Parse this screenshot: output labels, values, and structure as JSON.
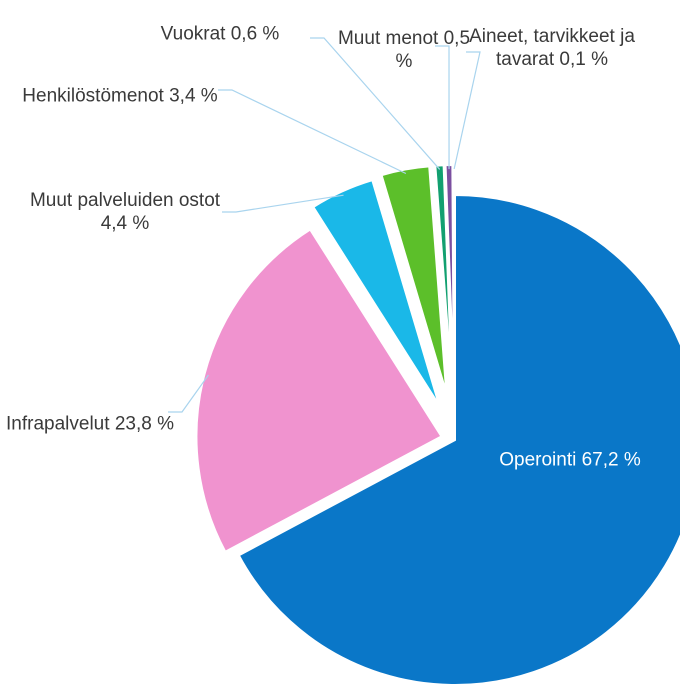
{
  "chart_data": {
    "type": "pie",
    "categories": [
      "Operointi",
      "Infrapalvelut",
      "Muut palveluiden ostot",
      "Henkilöstömenot",
      "Vuokrat",
      "Muut menot",
      "Aineet, tarvikkeet ja tavarat"
    ],
    "values": [
      67.2,
      23.8,
      4.4,
      3.4,
      0.6,
      0.5,
      0.1
    ],
    "value_labels": [
      "67,2 %",
      "23,8 %",
      "4,4 %",
      "3,4 %",
      "0,6 %",
      "0,5 %",
      "0,1 %"
    ],
    "colors": [
      "#0a77c8",
      "#f093cf",
      "#1ab8e8",
      "#5cbf2a",
      "#12a070",
      "#7b4fa0",
      "#d6217a"
    ]
  }
}
